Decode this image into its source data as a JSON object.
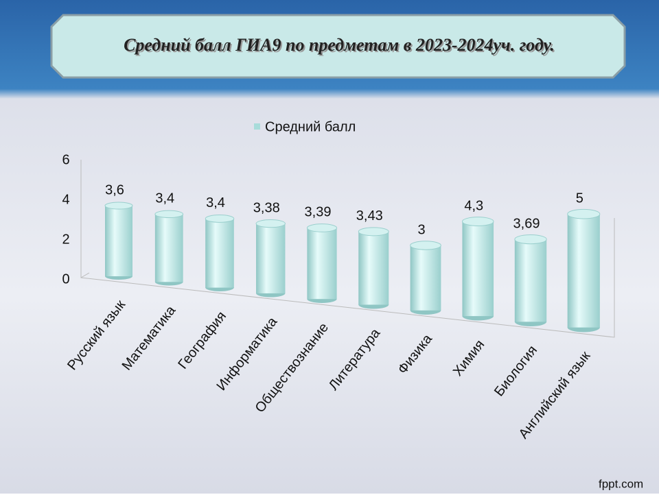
{
  "chart_data": {
    "type": "bar",
    "title": "Средний балл ГИА9    по предметам в 2023-2024уч. году.",
    "legend": "Средний балл",
    "categories": [
      "Русский язык",
      "Математика",
      "География",
      "Информатика",
      "Обществознание",
      "Литература",
      "Физика",
      "Химия",
      "Биология",
      "Английский язык"
    ],
    "series": [
      {
        "name": "Средний балл",
        "color": "#a8dcda",
        "values": [
          3.6,
          3.4,
          3.4,
          3.38,
          3.39,
          3.43,
          3,
          4.3,
          3.69,
          5
        ],
        "value_labels": [
          "3,6",
          "3,4",
          "3,4",
          "3,38",
          "3,39",
          "3,43",
          "3",
          "4,3",
          "3,69",
          "5"
        ]
      }
    ],
    "ylim": [
      0,
      6
    ],
    "yticks": [
      0,
      2,
      4,
      6
    ],
    "grid": false
  },
  "footer": "fppt.com"
}
